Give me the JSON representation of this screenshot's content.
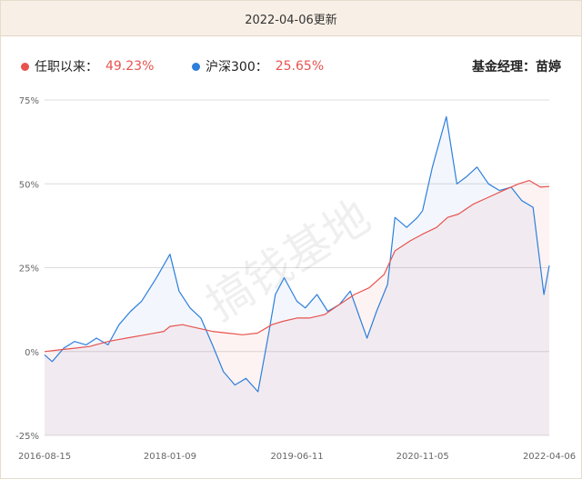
{
  "header": {
    "updated": "2022-04-06更新"
  },
  "legend": {
    "series1_label": "任职以来：",
    "series1_value": "49.23%",
    "series2_label": "沪深300：",
    "series2_value": "25.65%",
    "manager": "基金经理：苗婷"
  },
  "watermark": "搞钱基地",
  "colors": {
    "fund": "#e8534f",
    "index": "#2d7fdc",
    "header_bg": "#f8f0e6"
  },
  "chart_data": {
    "type": "line",
    "x_ticks": [
      "2016-08-15",
      "2018-01-09",
      "2019-06-11",
      "2020-11-05",
      "2022-04-06"
    ],
    "y_ticks": [
      "75%",
      "50%",
      "25%",
      "0%",
      "-25%"
    ],
    "ylim": [
      -25,
      75
    ],
    "xlim": [
      "2016-08-15",
      "2022-04-06"
    ],
    "grid": true,
    "legend_position": "top",
    "series": [
      {
        "name": "任职以来",
        "color": "#e8534f",
        "x": [
          "2016-08-15",
          "2016-10-15",
          "2016-12-15",
          "2017-02-15",
          "2017-05-01",
          "2017-07-15",
          "2017-10-01",
          "2017-12-15",
          "2018-01-09",
          "2018-03-01",
          "2018-05-01",
          "2018-07-01",
          "2018-09-01",
          "2018-11-01",
          "2019-01-01",
          "2019-03-01",
          "2019-04-15",
          "2019-06-11",
          "2019-08-01",
          "2019-10-01",
          "2019-12-01",
          "2020-02-01",
          "2020-04-01",
          "2020-06-01",
          "2020-07-15",
          "2020-09-15",
          "2020-11-05",
          "2021-01-01",
          "2021-02-15",
          "2021-04-01",
          "2021-06-01",
          "2021-08-01",
          "2021-10-01",
          "2021-12-01",
          "2022-01-15",
          "2022-03-01",
          "2022-04-06"
        ],
        "values": [
          0,
          0.5,
          1,
          1.5,
          3,
          4,
          5,
          6,
          7.5,
          8,
          7,
          6,
          5.5,
          5,
          5.5,
          8,
          9,
          10,
          10,
          11,
          14,
          17,
          19,
          23,
          30,
          33,
          35,
          37,
          40,
          41,
          44,
          46,
          48,
          50,
          51,
          49,
          49.23
        ]
      },
      {
        "name": "沪深300",
        "color": "#2d7fdc",
        "x": [
          "2016-08-15",
          "2016-09-15",
          "2016-11-01",
          "2016-12-15",
          "2017-02-01",
          "2017-03-15",
          "2017-05-01",
          "2017-06-15",
          "2017-08-01",
          "2017-09-15",
          "2017-11-15",
          "2018-01-09",
          "2018-02-15",
          "2018-04-01",
          "2018-05-15",
          "2018-07-01",
          "2018-08-15",
          "2018-10-01",
          "2018-11-15",
          "2019-01-03",
          "2019-02-15",
          "2019-03-15",
          "2019-04-20",
          "2019-06-11",
          "2019-07-15",
          "2019-09-01",
          "2019-10-15",
          "2019-12-01",
          "2020-01-15",
          "2020-03-23",
          "2020-05-01",
          "2020-06-15",
          "2020-07-15",
          "2020-09-01",
          "2020-10-15",
          "2020-11-05",
          "2020-12-15",
          "2021-02-10",
          "2021-03-25",
          "2021-05-01",
          "2021-06-15",
          "2021-08-01",
          "2021-09-15",
          "2021-11-01",
          "2021-12-15",
          "2022-01-30",
          "2022-03-15",
          "2022-04-06"
        ],
        "values": [
          -1,
          -3,
          1,
          3,
          2,
          4,
          2,
          8,
          12,
          15,
          22,
          29,
          18,
          13,
          10,
          2,
          -6,
          -10,
          -8,
          -12,
          5,
          17,
          22,
          15,
          13,
          17,
          12,
          14,
          18,
          4,
          12,
          20,
          40,
          37,
          40,
          42,
          55,
          70,
          50,
          52,
          55,
          50,
          48,
          49,
          45,
          43,
          17,
          25.65
        ]
      }
    ]
  }
}
